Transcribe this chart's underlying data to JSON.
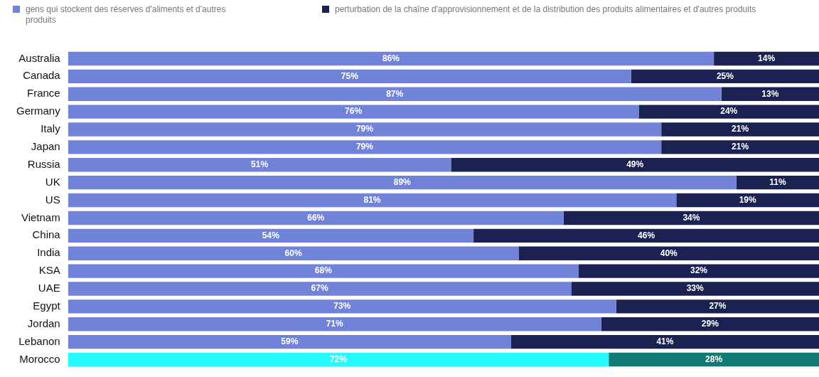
{
  "chart_data": {
    "type": "bar",
    "orientation": "horizontal",
    "stacked": true,
    "xlim": [
      0,
      100
    ],
    "tick_labels": "y",
    "legend": "top left",
    "categories": [
      "Australia",
      "Canada",
      "France",
      "Germany",
      "Italy",
      "Japan",
      "Russia",
      "UK",
      "US",
      "Vietnam",
      "China",
      "India",
      "KSA",
      "UAE",
      "Egypt",
      "Jordan",
      "Lebanon",
      "Morocco"
    ],
    "series": [
      {
        "name": "gens qui stockent des réserves d'aliments et d'autres produits",
        "color": "#7083d9",
        "colors": [
          "#7083d9",
          "#7083d9",
          "#7083d9",
          "#7083d9",
          "#7083d9",
          "#7083d9",
          "#7083d9",
          "#7083d9",
          "#7083d9",
          "#7083d9",
          "#7083d9",
          "#7083d9",
          "#7083d9",
          "#7083d9",
          "#7083d9",
          "#7083d9",
          "#7083d9",
          "#26fbff"
        ],
        "values": [
          86,
          75,
          87,
          76,
          79,
          79,
          51,
          89,
          81,
          66,
          54,
          60,
          68,
          67,
          73,
          71,
          59,
          72
        ],
        "value_labels": [
          "86%",
          "75%",
          "87%",
          "76%",
          "79%",
          "79%",
          "51%",
          "89%",
          "81%",
          "66%",
          "54%",
          "60%",
          "68%",
          "67%",
          "73%",
          "71%",
          "59%",
          "72%"
        ]
      },
      {
        "name": "perturbation de la chaîne d'approvisionnement et de la distribution des produits alimentaires et d'autres produits",
        "color": "#1b2251",
        "colors": [
          "#1b2251",
          "#1b2251",
          "#1b2251",
          "#1b2251",
          "#1b2251",
          "#1b2251",
          "#1b2251",
          "#1b2251",
          "#1b2251",
          "#1b2251",
          "#1b2251",
          "#1b2251",
          "#1b2251",
          "#1b2251",
          "#1b2251",
          "#1b2251",
          "#1b2251",
          "#117a72"
        ],
        "values": [
          14,
          25,
          13,
          24,
          21,
          21,
          49,
          11,
          19,
          34,
          46,
          40,
          32,
          33,
          27,
          29,
          41,
          28
        ],
        "value_labels": [
          "14%",
          "25%",
          "13%",
          "24%",
          "21%",
          "21%",
          "49%",
          "11%",
          "19%",
          "34%",
          "46%",
          "40%",
          "32%",
          "33%",
          "27%",
          "29%",
          "41%",
          "28%"
        ]
      }
    ]
  }
}
